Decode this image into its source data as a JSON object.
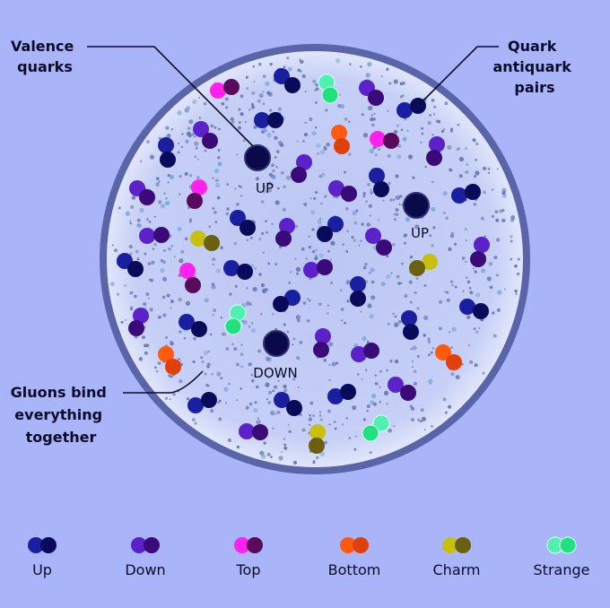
{
  "annotations": {
    "valence": [
      "Valence",
      "quarks"
    ],
    "pairs": [
      "Quark",
      "antiquark",
      "pairs"
    ],
    "gluons": [
      "Gluons bind",
      "everything",
      "together"
    ]
  },
  "valence_quarks": [
    {
      "label": "UP"
    },
    {
      "label": "UP"
    },
    {
      "label": "DOWN"
    }
  ],
  "valence_color": "#0a0a4a",
  "colors": {
    "up": [
      "#1a1fa0",
      "#0a0a5a"
    ],
    "down": [
      "#5a22c8",
      "#3a0a78"
    ],
    "top": [
      "#ff22ee",
      "#5a0a5a"
    ],
    "bottom": [
      "#ff5a10",
      "#e0400a"
    ],
    "charm": [
      "#c8c010",
      "#6a6010"
    ],
    "strange": [
      "#50f0b0",
      "#20e080"
    ]
  },
  "legend": [
    {
      "key": "up",
      "label": "Up"
    },
    {
      "key": "down",
      "label": "Down"
    },
    {
      "key": "top",
      "label": "Top"
    },
    {
      "key": "bottom",
      "label": "Bottom"
    },
    {
      "key": "charm",
      "label": "Charm"
    },
    {
      "key": "strange",
      "label": "Strange"
    }
  ]
}
